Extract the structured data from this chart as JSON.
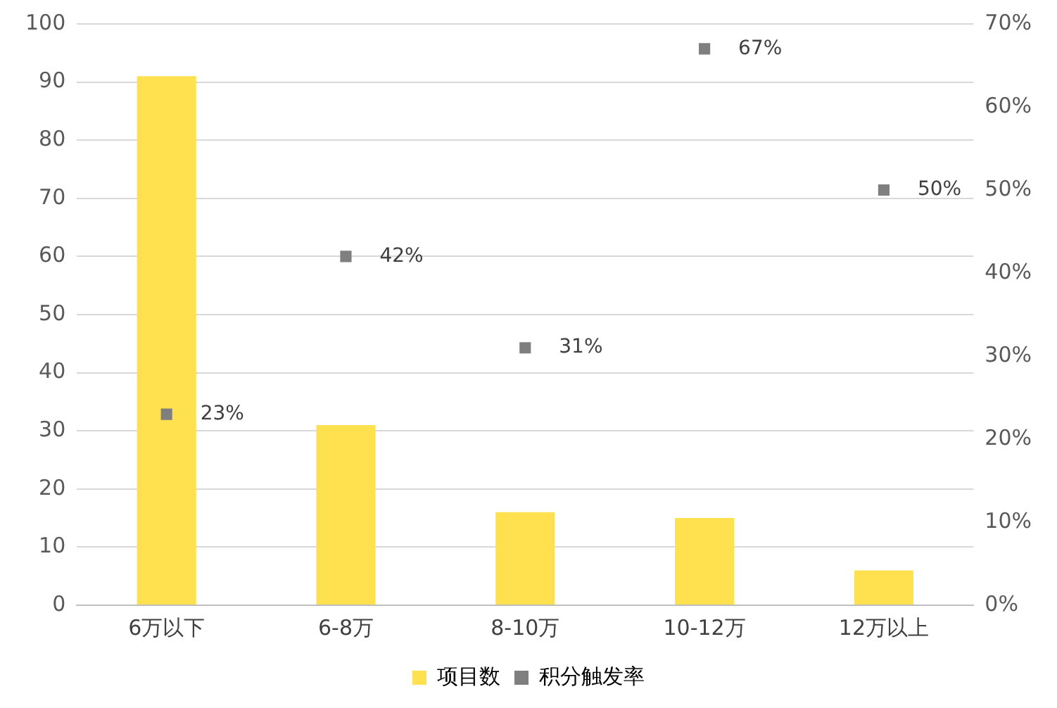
{
  "chart_data": {
    "type": "bar",
    "categories": [
      "6万以下",
      "6-8万",
      "8-10万",
      "10-12万",
      "12万以上"
    ],
    "series": [
      {
        "name": "项目数",
        "color": "#ffe14f",
        "values": [
          91,
          31,
          16,
          15,
          6
        ]
      },
      {
        "name": "积分触发率",
        "type": "scatter",
        "axis": "y2",
        "color": "#7f7f7f",
        "marker": "square",
        "values": [
          23,
          42,
          31,
          67,
          50
        ],
        "value_labels": [
          "23%",
          "42%",
          "31%",
          "67%",
          "50%"
        ]
      }
    ],
    "ylim": [
      0,
      100
    ],
    "yticks": [
      0,
      10,
      20,
      30,
      40,
      50,
      60,
      70,
      80,
      90,
      100
    ],
    "y2lim": [
      0,
      70
    ],
    "y2ticks": [
      {
        "value": 0,
        "label": "0%"
      },
      {
        "value": 10,
        "label": "10%"
      },
      {
        "value": 20,
        "label": "20%"
      },
      {
        "value": 30,
        "label": "30%"
      },
      {
        "value": 40,
        "label": "40%"
      },
      {
        "value": 50,
        "label": "50%"
      },
      {
        "value": 60,
        "label": "60%"
      },
      {
        "value": 70,
        "label": "70%"
      }
    ],
    "grid": "y",
    "legend": "bottom"
  }
}
